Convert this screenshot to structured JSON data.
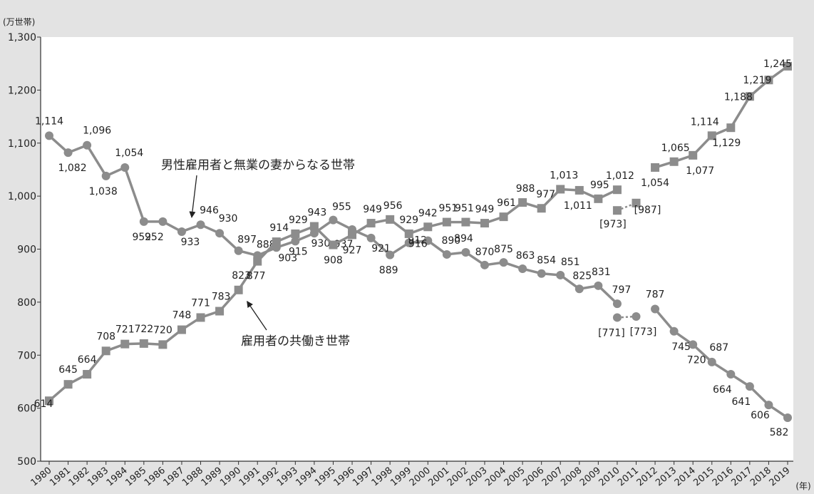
{
  "chart_data": {
    "type": "line",
    "ylabel": "(万世帯)",
    "xunit": "(年)",
    "ylim": [
      500,
      1300
    ],
    "yticks": [
      500,
      600,
      700,
      800,
      900,
      1000,
      1100,
      1200,
      1300
    ],
    "ytick_labels": [
      "500",
      "600",
      "700",
      "800",
      "900",
      "1,000",
      "1,100",
      "1,200",
      "1,300"
    ],
    "x": [
      "1980",
      "1981",
      "1982",
      "1983",
      "1984",
      "1985",
      "1986",
      "1987",
      "1988",
      "1989",
      "1990",
      "1991",
      "1992",
      "1993",
      "1994",
      "1995",
      "1996",
      "1997",
      "1998",
      "1999",
      "2000",
      "2001",
      "2002",
      "2003",
      "2004",
      "2005",
      "2006",
      "2007",
      "2008",
      "2009",
      "2010",
      "2011",
      "2012",
      "2013",
      "2014",
      "2015",
      "2016",
      "2017",
      "2018",
      "2019"
    ],
    "series": [
      {
        "name": "男性雇用者と無業の妻からなる世帯",
        "marker": "circle",
        "values": [
          1114,
          1082,
          1096,
          1038,
          1054,
          952,
          952,
          933,
          946,
          930,
          897,
          888,
          903,
          915,
          930,
          955,
          937,
          921,
          889,
          912,
          916,
          890,
          894,
          870,
          875,
          863,
          854,
          851,
          825,
          831,
          797,
          null,
          787,
          745,
          720,
          687,
          664,
          641,
          606,
          582
        ],
        "labels": [
          "1,114",
          "1,082",
          "1,096",
          "1,038",
          "1,054",
          "952",
          "952",
          "933",
          "946",
          "930",
          "897",
          "888",
          "903",
          "915",
          "930",
          "955",
          "937",
          "921",
          "889",
          "912",
          "916",
          "890",
          "894",
          "870",
          "875",
          "863",
          "854",
          "851",
          "825",
          "831",
          "797",
          "",
          "787",
          "745",
          "720",
          "687",
          "664",
          "641",
          "606",
          "582"
        ],
        "bracket": [
          {
            "x": "2010",
            "value": 771,
            "label": "[771]"
          },
          {
            "x": "2011",
            "value": 773,
            "label": "[773]"
          }
        ]
      },
      {
        "name": "雇用者の共働き世帯",
        "marker": "square",
        "values": [
          614,
          645,
          664,
          708,
          721,
          722,
          720,
          748,
          771,
          783,
          823,
          877,
          914,
          929,
          943,
          908,
          927,
          949,
          956,
          929,
          942,
          951,
          951,
          949,
          961,
          988,
          977,
          1013,
          1011,
          995,
          1012,
          null,
          1054,
          1065,
          1077,
          1114,
          1129,
          1188,
          1219,
          1245
        ],
        "labels": [
          "614",
          "645",
          "664",
          "708",
          "721",
          "722",
          "720",
          "748",
          "771",
          "783",
          "823",
          "877",
          "914",
          "929",
          "943",
          "908",
          "927",
          "949",
          "956",
          "929",
          "942",
          "951",
          "951",
          "949",
          "961",
          "988",
          "977",
          "1,013",
          "1,011",
          "995",
          "1,012",
          "",
          "1,054",
          "1,065",
          "1,077",
          "1,114",
          "1,129",
          "1,188",
          "1,219",
          "1,245"
        ],
        "bracket": [
          {
            "x": "2010",
            "value": 973,
            "label": "[973]"
          },
          {
            "x": "2011",
            "value": 987,
            "label": "[987]"
          }
        ]
      }
    ],
    "annotations": [
      {
        "text": "男性雇用者と無業の妻からなる世帯",
        "series": 0
      },
      {
        "text": "雇用者の共働き世帯",
        "series": 1
      }
    ],
    "colors": {
      "line": "#8c8c8c",
      "axis": "#333333",
      "background": "#e3e3e3",
      "plot_background": "#ffffff",
      "text": "#222222"
    }
  }
}
